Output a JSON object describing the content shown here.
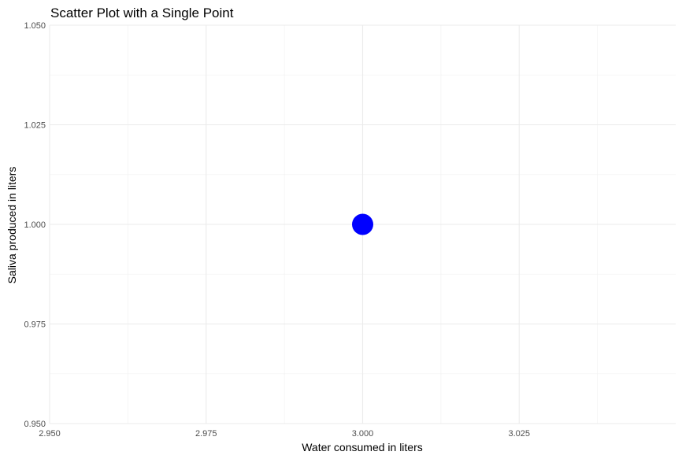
{
  "chart_data": {
    "type": "scatter",
    "title": "Scatter Plot with a Single Point",
    "xlabel": "Water consumed in liters",
    "ylabel": "Saliva produced in liters",
    "xlim": [
      2.95,
      3.05
    ],
    "ylim": [
      0.95,
      1.05
    ],
    "x_ticks": [
      "2.950",
      "2.975",
      "3.000",
      "3.025"
    ],
    "y_ticks": [
      "0.950",
      "0.975",
      "1.000",
      "1.025",
      "1.050"
    ],
    "grid": true,
    "legend": "none",
    "series": [
      {
        "x": [
          3.0
        ],
        "y": [
          1.0
        ],
        "color": "#0000ff"
      }
    ]
  }
}
